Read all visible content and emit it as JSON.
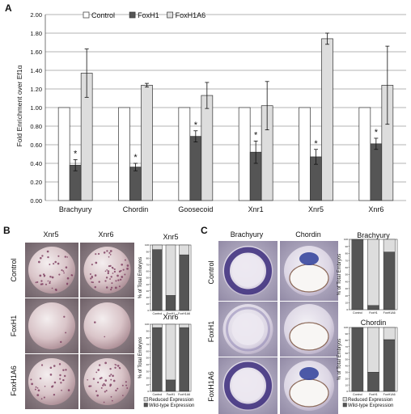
{
  "panels": {
    "a_label": "A",
    "b_label": "B",
    "c_label": "C",
    "b_col_xnr5": "Xnr5",
    "b_col_xnr6": "Xnr6",
    "b_row_control": "Control",
    "b_row_foxh1": "FoxH1",
    "b_row_foxh1a6": "FoxH1A6",
    "c_col_brachyury": "Brachyury",
    "c_col_chordin": "Chordin",
    "c_row_control": "Control",
    "c_row_foxh1": "FoxH1",
    "c_row_foxh1a6": "FoxH1A6"
  },
  "chart_data": [
    {
      "type": "bar",
      "panel": "A",
      "ylabel": "Fold Enrichment over Ef1α",
      "ylim": [
        0,
        2.0
      ],
      "yticks": [
        "0.00",
        "0.20",
        "0.40",
        "0.60",
        "0.80",
        "1.00",
        "1.20",
        "1.40",
        "1.60",
        "1.80",
        "2.00"
      ],
      "grid": true,
      "legend_position": "top-left",
      "categories": [
        "Brachyury",
        "Chordin",
        "Goosecoid",
        "Xnr1",
        "Xnr5",
        "Xnr6"
      ],
      "series": [
        {
          "name": "Control",
          "color": "#ffffff",
          "values": [
            1.0,
            1.0,
            1.0,
            1.0,
            1.0,
            1.0
          ],
          "errors": [
            0,
            0,
            0,
            0,
            0,
            0
          ]
        },
        {
          "name": "FoxH1",
          "color": "#555555",
          "values": [
            0.38,
            0.36,
            0.69,
            0.52,
            0.47,
            0.61
          ],
          "errors": [
            0.06,
            0.04,
            0.06,
            0.12,
            0.08,
            0.06
          ]
        },
        {
          "name": "FoxH1A6",
          "color": "#dddddd",
          "values": [
            1.37,
            1.24,
            1.13,
            1.02,
            1.74,
            1.24
          ],
          "errors": [
            0.26,
            0.02,
            0.14,
            0.26,
            0.06,
            0.42
          ]
        }
      ],
      "significance_marker": "*",
      "significant_series": "FoxH1"
    },
    {
      "type": "bar",
      "panel": "B",
      "title": "Xnr5",
      "ylabel": "% of Total Embryos",
      "ylim": [
        0,
        100
      ],
      "yticks": [
        "0",
        "10",
        "20",
        "30",
        "40",
        "50",
        "60",
        "70",
        "80",
        "90",
        "100"
      ],
      "categories": [
        "Control",
        "FoxH1",
        "FoxH1A6"
      ],
      "series": [
        {
          "name": "Wild-type Expression",
          "color": "#555555",
          "values": [
            93,
            23,
            85
          ]
        },
        {
          "name": "Reduced Expression",
          "color": "#dddddd",
          "values": [
            7,
            77,
            15
          ]
        }
      ]
    },
    {
      "type": "bar",
      "panel": "B",
      "title": "Xnr6",
      "ylabel": "% of Total Embryos",
      "ylim": [
        0,
        100
      ],
      "yticks": [
        "0",
        "10",
        "20",
        "30",
        "40",
        "50",
        "60",
        "70",
        "80",
        "90",
        "100"
      ],
      "categories": [
        "Control",
        "FoxH1",
        "FoxH1A6"
      ],
      "legend": [
        "Reduced Expression",
        "Wild-type Expression"
      ],
      "series": [
        {
          "name": "Wild-type Expression",
          "color": "#555555",
          "values": [
            95,
            17,
            95
          ]
        },
        {
          "name": "Reduced Expression",
          "color": "#dddddd",
          "values": [
            5,
            83,
            5
          ]
        }
      ]
    },
    {
      "type": "bar",
      "panel": "C",
      "title": "Brachyury",
      "ylabel": "% of Total Embryos",
      "ylim": [
        0,
        100
      ],
      "yticks": [
        "0",
        "10",
        "20",
        "30",
        "40",
        "50",
        "60",
        "70",
        "80",
        "90",
        "100"
      ],
      "categories": [
        "Control",
        "FoxH1",
        "FoxH1A6"
      ],
      "series": [
        {
          "name": "Wild-type Expression",
          "color": "#555555",
          "values": [
            100,
            6,
            82
          ]
        },
        {
          "name": "Reduced Expression",
          "color": "#dddddd",
          "values": [
            0,
            94,
            18
          ]
        }
      ]
    },
    {
      "type": "bar",
      "panel": "C",
      "title": "Chordin",
      "ylabel": "% of Total Embryos",
      "ylim": [
        0,
        100
      ],
      "yticks": [
        "0",
        "10",
        "20",
        "30",
        "40",
        "50",
        "60",
        "70",
        "80",
        "90",
        "100"
      ],
      "categories": [
        "Control",
        "FoxH1",
        "FoxH1A6"
      ],
      "legend": [
        "Reduced Expression",
        "Wild-type Expression"
      ],
      "series": [
        {
          "name": "Wild-type Expression",
          "color": "#555555",
          "values": [
            100,
            30,
            81
          ]
        },
        {
          "name": "Reduced Expression",
          "color": "#dddddd",
          "values": [
            0,
            70,
            19
          ]
        }
      ]
    }
  ]
}
